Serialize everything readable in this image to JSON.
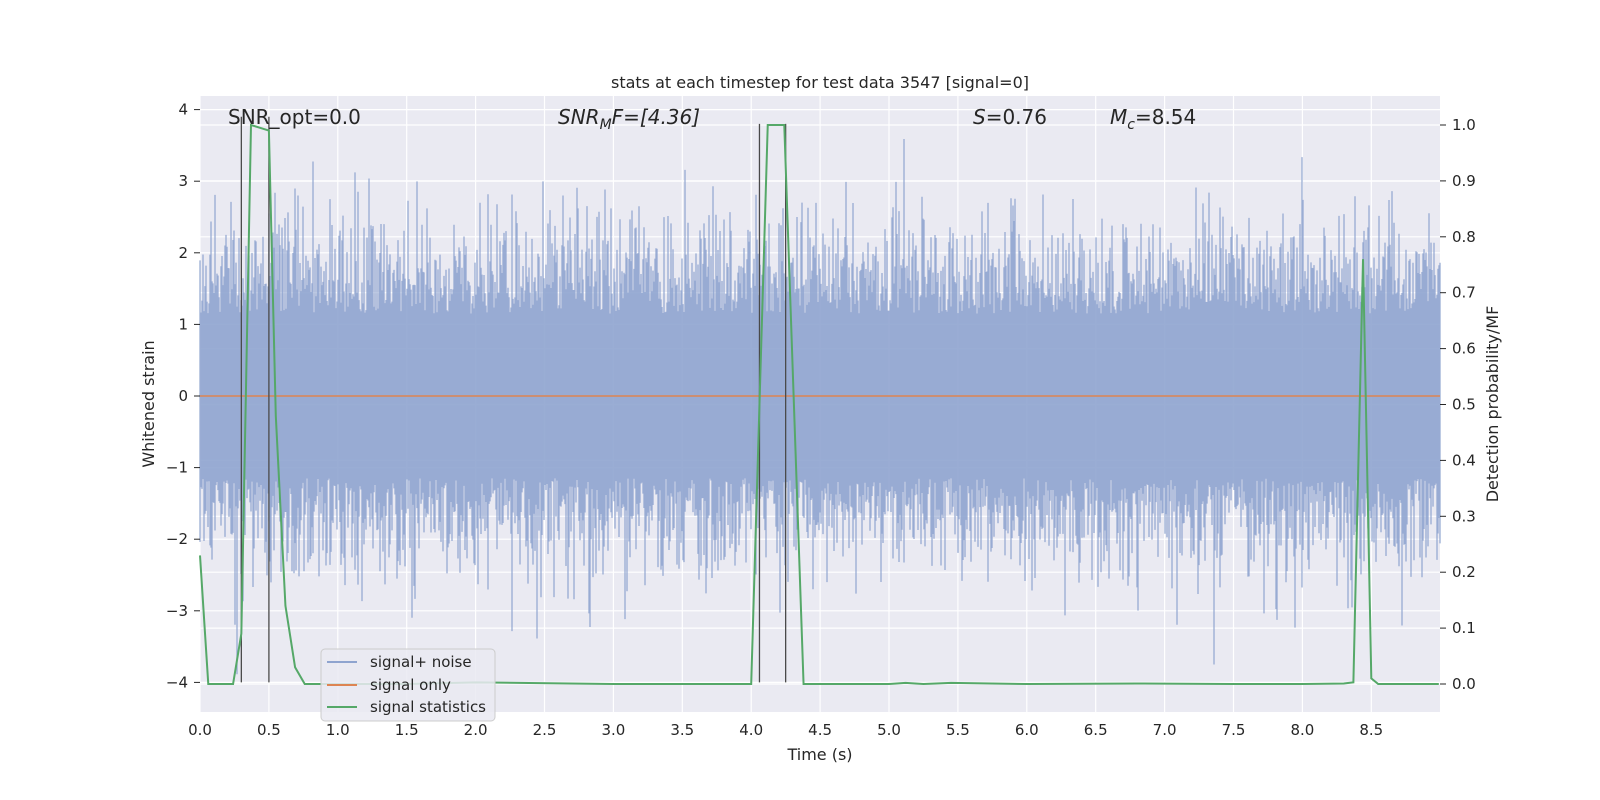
{
  "chart_data": {
    "type": "line",
    "title": "stats at each timestep for test data 3547 [signal=0]",
    "xlabel": "Time (s)",
    "ylabel": "Whitened strain",
    "y2label": "Detection probability/MF",
    "xlim": [
      0.0,
      9.0
    ],
    "ylim": [
      -4.2,
      4.2
    ],
    "y2lim": [
      -0.05,
      1.05
    ],
    "x_ticks": [
      "0.0",
      "0.5",
      "1.0",
      "1.5",
      "2.0",
      "2.5",
      "3.0",
      "3.5",
      "4.0",
      "4.5",
      "5.0",
      "5.5",
      "6.0",
      "6.5",
      "7.0",
      "7.5",
      "8.0",
      "8.5"
    ],
    "y_ticks": [
      "4",
      "3",
      "2",
      "1",
      "0",
      "−1",
      "−2",
      "−3",
      "−4"
    ],
    "y2_ticks": [
      "1.0",
      "0.9",
      "0.8",
      "0.7",
      "0.6",
      "0.5",
      "0.4",
      "0.3",
      "0.2",
      "0.1",
      "0.0"
    ],
    "grid": true,
    "legend": {
      "position": "lower-left",
      "entries": [
        {
          "label": "signal+ noise",
          "color": "#8fa4cf"
        },
        {
          "label": "signal only",
          "color": "#dd8452"
        },
        {
          "label": "signal statistics",
          "color": "#55a868"
        }
      ]
    },
    "annotations": {
      "snr_opt": "SNR_opt=0.0",
      "snr_mf_main": "SNR",
      "snr_mf_sub": "M",
      "snr_mf_rest": "F=[4.36]",
      "s_main": "S",
      "s_rest": "=0.76",
      "mc_main": "M",
      "mc_sub": "c",
      "mc_rest": "=8.54"
    },
    "series": [
      {
        "name": "signal+ noise",
        "description": "whitened strain noise, approx. Gaussian with std ~0.9 spanning 0–9 s",
        "envelope": {
          "typical_min": -2.0,
          "typical_max": 2.0,
          "peak_max": 3.8,
          "peak_min": -4.0
        }
      },
      {
        "name": "signal only",
        "x": [
          0.0,
          9.0
        ],
        "y": [
          0.0,
          0.0
        ]
      },
      {
        "name": "signal statistics",
        "axis": "right",
        "x": [
          0.0,
          0.06,
          0.24,
          0.3,
          0.37,
          0.5,
          0.55,
          0.62,
          0.69,
          0.76,
          1.5,
          2.0,
          3.0,
          3.5,
          4.0,
          4.12,
          4.24,
          4.38,
          5.0,
          5.12,
          5.25,
          5.45,
          6.0,
          6.8,
          7.5,
          8.0,
          8.3,
          8.37,
          8.44,
          8.5,
          8.55,
          8.64,
          8.99
        ],
        "y": [
          0.23,
          0.0,
          0.0,
          0.09,
          1.0,
          0.99,
          0.48,
          0.14,
          0.03,
          0.0,
          0.0,
          0.003,
          0.0,
          0.0,
          0.0,
          1.0,
          1.0,
          0.0,
          0.0,
          0.002,
          0.0,
          0.002,
          0.0,
          0.001,
          0.0,
          0.0,
          0.001,
          0.003,
          0.76,
          0.01,
          0.0,
          0.0,
          0.0
        ]
      }
    ],
    "vertical_markers": [
      {
        "x": 0.3,
        "y_top": 3.9
      },
      {
        "x": 0.5,
        "y_top": 3.9
      },
      {
        "x": 4.06,
        "y_top": 3.8
      },
      {
        "x": 4.25,
        "y_top": 3.8
      }
    ]
  }
}
